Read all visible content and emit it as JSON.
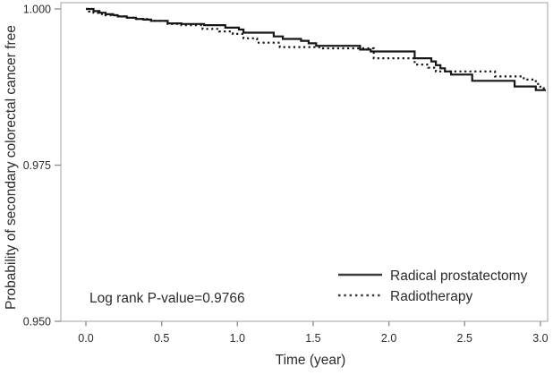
{
  "chart_data": {
    "type": "line",
    "subtype": "kaplan_meier_step",
    "title": "",
    "xlabel": "Time (year)",
    "ylabel": "Probability of secondary colorectal cancer free",
    "annotation": "Log rank P-value=0.9766",
    "grid": false,
    "legend_position": "bottom-right-inside",
    "xlim": [
      0,
      3.05
    ],
    "ylim": [
      0.95,
      1.001
    ],
    "x_ticks": [
      {
        "label": "0.0",
        "value": 0.0
      },
      {
        "label": "0.5",
        "value": 0.5
      },
      {
        "label": "1.0",
        "value": 1.0
      },
      {
        "label": "1.5",
        "value": 1.5
      },
      {
        "label": "2.0",
        "value": 2.0
      },
      {
        "label": "2.5",
        "value": 2.5
      },
      {
        "label": "3.0",
        "value": 3.0
      }
    ],
    "y_ticks": [
      {
        "label": "1.000",
        "value": 1.0
      },
      {
        "label": "0.975",
        "value": 0.975
      },
      {
        "label": "0.950",
        "value": 0.95
      }
    ],
    "series": [
      {
        "name": "Radical prostatectomy",
        "style": "solid",
        "points": [
          [
            0.0,
            1.0
          ],
          [
            0.05,
            0.99965
          ],
          [
            0.09,
            0.9994
          ],
          [
            0.13,
            0.99915
          ],
          [
            0.18,
            0.999
          ],
          [
            0.21,
            0.9988
          ],
          [
            0.27,
            0.9986
          ],
          [
            0.33,
            0.9984
          ],
          [
            0.38,
            0.9983
          ],
          [
            0.43,
            0.9981
          ],
          [
            0.54,
            0.9977
          ],
          [
            0.63,
            0.9976
          ],
          [
            0.78,
            0.9974
          ],
          [
            0.92,
            0.997
          ],
          [
            1.01,
            0.9967
          ],
          [
            1.04,
            0.9962
          ],
          [
            1.24,
            0.9956
          ],
          [
            1.3,
            0.9952
          ],
          [
            1.42,
            0.9949
          ],
          [
            1.47,
            0.9945
          ],
          [
            1.52,
            0.9941
          ],
          [
            1.81,
            0.9935
          ],
          [
            1.88,
            0.9932
          ],
          [
            2.17,
            0.9921
          ],
          [
            2.28,
            0.9916
          ],
          [
            2.31,
            0.991
          ],
          [
            2.34,
            0.9905
          ],
          [
            2.37,
            0.99
          ],
          [
            2.41,
            0.9895
          ],
          [
            2.55,
            0.9885
          ],
          [
            2.83,
            0.9876
          ],
          [
            2.97,
            0.987
          ]
        ],
        "end_time": 3.04,
        "end_value": 0.987
      },
      {
        "name": "Radiotherapy",
        "style": "dotted",
        "points": [
          [
            0.0,
            1.0
          ],
          [
            0.02,
            0.9996
          ],
          [
            0.05,
            0.9994
          ],
          [
            0.08,
            0.9992
          ],
          [
            0.13,
            0.999
          ],
          [
            0.21,
            0.9988
          ],
          [
            0.27,
            0.9986
          ],
          [
            0.33,
            0.9984
          ],
          [
            0.43,
            0.9981
          ],
          [
            0.54,
            0.9976
          ],
          [
            0.63,
            0.9974
          ],
          [
            0.77,
            0.9968
          ],
          [
            0.88,
            0.9964
          ],
          [
            0.97,
            0.996
          ],
          [
            1.04,
            0.9953
          ],
          [
            1.13,
            0.9946
          ],
          [
            1.28,
            0.9939
          ],
          [
            1.54,
            0.9937
          ],
          [
            1.9,
            0.9921
          ],
          [
            2.17,
            0.9911
          ],
          [
            2.26,
            0.9906
          ],
          [
            2.31,
            0.99
          ],
          [
            2.7,
            0.9892
          ],
          [
            2.89,
            0.9887
          ],
          [
            2.97,
            0.988
          ],
          [
            3.0,
            0.9873
          ]
        ],
        "end_time": 3.04,
        "end_value": 0.9873
      }
    ],
    "colors": {
      "line": "#171717",
      "legend_line": "#3d3d3d",
      "frame": "#b0b0b0",
      "tick": "#8c8c8c",
      "text": "#2b2b2b",
      "background": "#ffffff"
    }
  }
}
